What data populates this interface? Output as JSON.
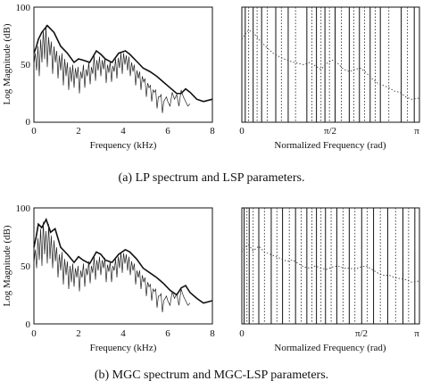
{
  "caption_a": "(a) LP spectrum and LSP parameters.",
  "caption_b": "(b) MGC spectrum and MGC-LSP parameters.",
  "chart_data": [
    {
      "id": "a-left",
      "type": "line",
      "xlabel": "Frequency (kHz)",
      "ylabel": "Log Magnitude (dB)",
      "xlim": [
        0,
        8
      ],
      "ylim": [
        0,
        100
      ],
      "xticks": [
        "0",
        "2",
        "4",
        "6",
        "8"
      ],
      "yticks": [
        "0",
        "50",
        "100"
      ],
      "series": [
        {
          "role": "envelope",
          "x": [
            0,
            0.1,
            0.2,
            0.35,
            0.6,
            0.9,
            1.2,
            1.5,
            1.8,
            2.0,
            2.2,
            2.5,
            2.8,
            3.0,
            3.2,
            3.5,
            3.8,
            4.1,
            4.3,
            4.6,
            4.9,
            5.2,
            5.5,
            5.8,
            6.1,
            6.4,
            6.6,
            6.8,
            7.0,
            7.3,
            7.6,
            8.0
          ],
          "y": [
            60,
            65,
            72,
            78,
            84,
            78,
            66,
            60,
            52,
            55,
            54,
            52,
            62,
            59,
            55,
            52,
            60,
            62,
            59,
            53,
            47,
            44,
            40,
            35,
            30,
            25,
            25,
            29,
            26,
            20,
            18,
            20
          ]
        },
        {
          "role": "fine",
          "x": [
            0,
            0.06,
            0.12,
            0.18,
            0.24,
            0.3,
            0.36,
            0.42,
            0.48,
            0.54,
            0.6,
            0.66,
            0.72,
            0.78,
            0.84,
            0.9,
            0.96,
            1.02,
            1.08,
            1.14,
            1.2,
            1.26,
            1.32,
            1.38,
            1.44,
            1.5,
            1.56,
            1.62,
            1.68,
            1.74,
            1.8,
            1.86,
            1.92,
            1.98,
            2.04,
            2.1,
            2.16,
            2.22,
            2.28,
            2.34,
            2.4,
            2.46,
            2.52,
            2.58,
            2.64,
            2.7,
            2.76,
            2.82,
            2.88,
            2.94,
            3.0,
            3.06,
            3.12,
            3.18,
            3.24,
            3.3,
            3.36,
            3.42,
            3.48,
            3.54,
            3.6,
            3.66,
            3.72,
            3.78,
            3.84,
            3.9,
            3.96,
            4.02,
            4.08,
            4.14,
            4.2,
            4.26,
            4.32,
            4.38,
            4.44,
            4.5,
            4.56,
            4.62,
            4.68,
            4.74,
            4.8,
            4.86,
            4.92,
            4.98,
            5.04,
            5.1,
            5.16,
            5.22,
            5.28,
            5.34,
            5.4,
            5.46,
            5.52,
            5.58,
            5.64,
            5.7,
            5.76,
            5.82,
            5.88,
            5.94,
            6.0,
            6.1,
            6.2,
            6.3,
            6.4,
            6.5,
            6.6,
            6.7,
            6.8,
            6.9,
            7.0
          ],
          "y": [
            50,
            60,
            45,
            66,
            40,
            72,
            52,
            80,
            55,
            84,
            48,
            74,
            58,
            70,
            42,
            66,
            52,
            62,
            38,
            58,
            45,
            60,
            32,
            55,
            40,
            52,
            28,
            48,
            35,
            50,
            30,
            47,
            38,
            48,
            25,
            44,
            38,
            50,
            30,
            46,
            40,
            52,
            33,
            48,
            42,
            58,
            36,
            54,
            45,
            57,
            40,
            54,
            46,
            56,
            34,
            50,
            43,
            53,
            35,
            49,
            44,
            55,
            38,
            56,
            47,
            60,
            42,
            60,
            50,
            58,
            45,
            57,
            40,
            52,
            44,
            50,
            32,
            45,
            38,
            44,
            28,
            40,
            35,
            38,
            22,
            34,
            30,
            32,
            18,
            28,
            26,
            28,
            12,
            22,
            22,
            24,
            8,
            18,
            20,
            22,
            18,
            14,
            26,
            20,
            24,
            14,
            28,
            22,
            18,
            14,
            16
          ]
        }
      ]
    },
    {
      "id": "a-right",
      "type": "line",
      "xlabel": "Normalized Frequency (rad)",
      "xlim": [
        0,
        3.1416
      ],
      "ylim": [
        0,
        100
      ],
      "xticks": [
        "0",
        "π/2",
        "π"
      ],
      "series": [
        {
          "role": "normalized",
          "x": [
            0,
            0.05,
            0.12,
            0.2,
            0.3,
            0.42,
            0.55,
            0.7,
            0.85,
            1.0,
            1.1,
            1.2,
            1.3,
            1.4,
            1.5,
            1.6,
            1.7,
            1.8,
            1.9,
            2.0,
            2.1,
            2.2,
            2.3,
            2.4,
            2.5,
            2.6,
            2.7,
            2.8,
            2.9,
            3.0,
            3.1416
          ],
          "y": [
            72,
            76,
            80,
            78,
            72,
            66,
            60,
            56,
            53,
            51,
            50,
            52,
            49,
            46,
            51,
            54,
            51,
            46,
            44,
            46,
            47,
            43,
            38,
            34,
            32,
            30,
            27,
            26,
            22,
            20,
            21
          ]
        }
      ],
      "lsp_solid": [
        0.06,
        0.2,
        0.35,
        0.6,
        0.82,
        1.15,
        1.32,
        1.47,
        1.65,
        1.9,
        2.08,
        2.27,
        2.45,
        2.82,
        3.05
      ],
      "lsp_dotted": [
        0.12,
        0.27,
        0.45,
        0.7,
        0.95,
        1.24,
        1.4,
        1.55,
        1.76,
        1.98,
        2.17,
        2.36,
        2.6,
        2.93
      ]
    },
    {
      "id": "b-left",
      "type": "line",
      "xlabel": "Frequency (kHz)",
      "ylabel": "Log Magnitude (dB)",
      "xlim": [
        0,
        8
      ],
      "ylim": [
        0,
        100
      ],
      "xticks": [
        "0",
        "2",
        "4",
        "6",
        "8"
      ],
      "yticks": [
        "0",
        "50",
        "100"
      ],
      "series": [
        {
          "role": "envelope",
          "x": [
            0,
            0.1,
            0.2,
            0.35,
            0.55,
            0.75,
            0.95,
            1.2,
            1.5,
            1.8,
            2.0,
            2.2,
            2.5,
            2.8,
            3.0,
            3.2,
            3.5,
            3.8,
            4.1,
            4.3,
            4.6,
            4.9,
            5.2,
            5.5,
            5.8,
            6.1,
            6.4,
            6.6,
            6.8,
            7.0,
            7.3,
            7.6,
            8.0
          ],
          "y": [
            66,
            75,
            86,
            83,
            90,
            79,
            82,
            66,
            60,
            53,
            58,
            55,
            52,
            62,
            60,
            55,
            53,
            60,
            64,
            62,
            56,
            48,
            44,
            40,
            35,
            29,
            25,
            31,
            33,
            27,
            22,
            18,
            20
          ]
        },
        {
          "role": "fine",
          "x": [
            0,
            0.06,
            0.12,
            0.18,
            0.24,
            0.3,
            0.36,
            0.42,
            0.48,
            0.54,
            0.6,
            0.66,
            0.72,
            0.78,
            0.84,
            0.9,
            0.96,
            1.02,
            1.08,
            1.14,
            1.2,
            1.26,
            1.32,
            1.38,
            1.44,
            1.5,
            1.56,
            1.62,
            1.68,
            1.74,
            1.8,
            1.86,
            1.92,
            1.98,
            2.04,
            2.1,
            2.16,
            2.22,
            2.28,
            2.34,
            2.4,
            2.46,
            2.52,
            2.58,
            2.64,
            2.7,
            2.76,
            2.82,
            2.88,
            2.94,
            3.0,
            3.06,
            3.12,
            3.18,
            3.24,
            3.3,
            3.36,
            3.42,
            3.48,
            3.54,
            3.6,
            3.66,
            3.72,
            3.78,
            3.84,
            3.9,
            3.96,
            4.02,
            4.08,
            4.14,
            4.2,
            4.26,
            4.32,
            4.38,
            4.44,
            4.5,
            4.56,
            4.62,
            4.68,
            4.74,
            4.8,
            4.86,
            4.92,
            4.98,
            5.04,
            5.1,
            5.16,
            5.22,
            5.28,
            5.34,
            5.4,
            5.46,
            5.52,
            5.58,
            5.64,
            5.7,
            5.76,
            5.82,
            5.88,
            5.94,
            6.0,
            6.1,
            6.2,
            6.3,
            6.4,
            6.5,
            6.6,
            6.7,
            6.8,
            6.9,
            7.0
          ],
          "y": [
            52,
            64,
            48,
            74,
            55,
            82,
            50,
            88,
            60,
            80,
            52,
            86,
            56,
            76,
            48,
            72,
            54,
            66,
            40,
            60,
            46,
            62,
            34,
            56,
            42,
            54,
            30,
            50,
            36,
            52,
            32,
            48,
            40,
            50,
            28,
            46,
            40,
            52,
            32,
            48,
            42,
            54,
            35,
            50,
            44,
            58,
            38,
            55,
            46,
            58,
            42,
            55,
            48,
            57,
            36,
            51,
            45,
            54,
            36,
            50,
            46,
            56,
            40,
            58,
            48,
            62,
            44,
            61,
            52,
            60,
            46,
            58,
            42,
            54,
            46,
            52,
            34,
            46,
            40,
            46,
            30,
            42,
            36,
            40,
            24,
            36,
            32,
            34,
            20,
            30,
            28,
            30,
            14,
            24,
            24,
            26,
            10,
            20,
            22,
            24,
            20,
            16,
            28,
            22,
            26,
            16,
            30,
            24,
            20,
            16,
            18
          ]
        }
      ]
    },
    {
      "id": "b-right",
      "type": "line",
      "xlabel": "Normalized Frequency (rad)",
      "xlim": [
        0,
        3.1416
      ],
      "ylim": [
        0,
        100
      ],
      "xticks": [
        "0",
        "π/2",
        "π"
      ],
      "series": [
        {
          "role": "normalized",
          "x": [
            0,
            0.05,
            0.12,
            0.2,
            0.3,
            0.4,
            0.5,
            0.6,
            0.7,
            0.8,
            0.9,
            1.0,
            1.1,
            1.2,
            1.3,
            1.4,
            1.5,
            1.6,
            1.7,
            1.8,
            1.9,
            2.0,
            2.1,
            2.2,
            2.3,
            2.4,
            2.5,
            2.6,
            2.7,
            2.8,
            2.9,
            3.0,
            3.1416
          ],
          "y": [
            62,
            66,
            68,
            63,
            67,
            62,
            60,
            58,
            56,
            54,
            55,
            52,
            49,
            48,
            50,
            48,
            47,
            49,
            50,
            48,
            48,
            47,
            49,
            50,
            47,
            44,
            42,
            42,
            40,
            39,
            38,
            36,
            37
          ]
        }
      ],
      "lsp_solid": [
        0.04,
        0.13,
        0.3,
        0.52,
        0.72,
        0.95,
        1.15,
        1.32,
        1.48,
        1.68,
        1.9,
        2.12,
        2.33,
        2.58,
        2.85,
        3.06
      ],
      "lsp_dotted": [
        0.09,
        0.2,
        0.4,
        0.62,
        0.84,
        1.05,
        1.24,
        1.4,
        1.58,
        1.79,
        2.0,
        2.22,
        2.45,
        2.72,
        2.95
      ]
    }
  ]
}
